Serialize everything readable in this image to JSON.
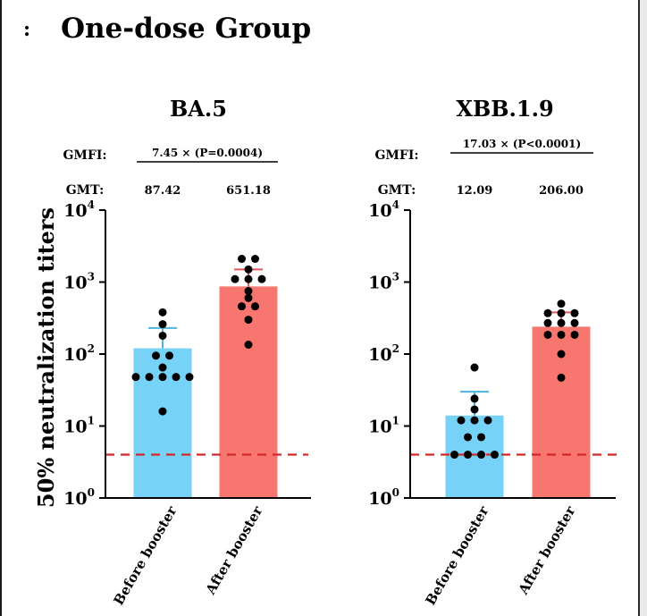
{
  "panel_letter": ":",
  "heading": "One-dose Group",
  "colors": {
    "before_booster": "#76d2f6",
    "after_booster": "#f7766f",
    "error_before": "#4cb4dd",
    "error_after": "#e2555a",
    "threshold": "#d62728",
    "dots": "#000000"
  },
  "chart_data": [
    {
      "type": "bar",
      "title": "BA.5",
      "ylabel": "50% neutralization titers",
      "yscale": "log",
      "ylim": [
        1,
        10000
      ],
      "yticks": [
        1,
        10,
        100,
        1000,
        10000
      ],
      "yticklabels": [
        {
          "base": "10",
          "exp": "0"
        },
        {
          "base": "10",
          "exp": "1"
        },
        {
          "base": "10",
          "exp": "2"
        },
        {
          "base": "10",
          "exp": "3"
        },
        {
          "base": "10",
          "exp": "4"
        }
      ],
      "categories": [
        "Before booster",
        "After booster"
      ],
      "values": [
        120,
        870
      ],
      "error_upper": [
        230,
        1500
      ],
      "gmt_label": "GMT:",
      "gmt_values": [
        "87.42",
        "651.18"
      ],
      "gmfi_label": "GMFI:",
      "gmfi_text": "7.45 × (P=0.0004)",
      "threshold": 4,
      "points": [
        [
          380,
          260,
          180,
          95,
          95,
          65,
          48,
          48,
          48,
          48,
          48,
          16
        ],
        [
          2100,
          2100,
          1500,
          1100,
          1100,
          1100,
          750,
          600,
          460,
          460,
          300,
          135
        ]
      ]
    },
    {
      "type": "bar",
      "title": "XBB.1.9",
      "ylabel": "50% neutralization titers",
      "yscale": "log",
      "ylim": [
        1,
        10000
      ],
      "yticks": [
        1,
        10,
        100,
        1000,
        10000
      ],
      "yticklabels": [
        {
          "base": "10",
          "exp": "0"
        },
        {
          "base": "10",
          "exp": "1"
        },
        {
          "base": "10",
          "exp": "2"
        },
        {
          "base": "10",
          "exp": "3"
        },
        {
          "base": "10",
          "exp": "4"
        }
      ],
      "categories": [
        "Before booster",
        "After booster"
      ],
      "values": [
        14,
        240
      ],
      "error_upper": [
        30,
        380
      ],
      "gmt_label": "GMT:",
      "gmt_values": [
        "12.09",
        "206.00"
      ],
      "gmfi_label": "GMFI:",
      "gmfi_text": "17.03 × (P<0.0001)",
      "threshold": 4,
      "points": [
        [
          65,
          24,
          17,
          12,
          12,
          12,
          7,
          7,
          4,
          4,
          4,
          4
        ],
        [
          500,
          370,
          370,
          370,
          270,
          270,
          270,
          185,
          185,
          185,
          100,
          47
        ]
      ]
    }
  ]
}
